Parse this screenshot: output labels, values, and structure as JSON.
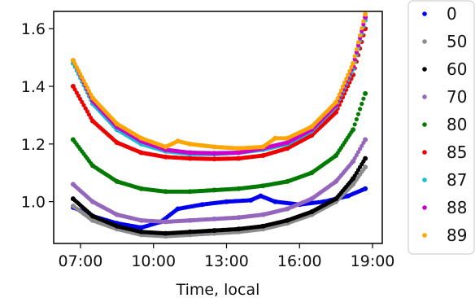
{
  "chart_data": {
    "type": "scatter",
    "title": "",
    "xlabel": "Time, local",
    "ylabel": "",
    "x_range_hours": [
      5.9,
      19.4
    ],
    "ylim": [
      0.855,
      1.66
    ],
    "x_ticks": [
      {
        "value": 7,
        "label": "07:00"
      },
      {
        "value": 10,
        "label": "10:00"
      },
      {
        "value": 13,
        "label": "13:00"
      },
      {
        "value": 16,
        "label": "16:00"
      },
      {
        "value": 19,
        "label": "19:00"
      }
    ],
    "y_ticks": [
      {
        "value": 1.0,
        "label": "1.0"
      },
      {
        "value": 1.2,
        "label": "1.2"
      },
      {
        "value": 1.4,
        "label": "1.4"
      },
      {
        "value": 1.6,
        "label": "1.6"
      }
    ],
    "grid": false,
    "legend_position": "outside-right",
    "series": [
      {
        "name": "0",
        "color": "#0000ee",
        "x": [
          6.7,
          7.5,
          8.5,
          9.5,
          10.3,
          11.0,
          12.0,
          13.0,
          14.0,
          14.4,
          15.0,
          16.0,
          17.0,
          18.0,
          18.7
        ],
        "y": [
          0.98,
          0.95,
          0.925,
          0.91,
          0.93,
          0.975,
          0.99,
          1.0,
          1.005,
          1.02,
          1.0,
          0.99,
          1.0,
          1.02,
          1.045
        ]
      },
      {
        "name": "50",
        "color": "#8c8c8c",
        "x": [
          6.7,
          7.5,
          8.5,
          9.5,
          10.5,
          11.5,
          12.5,
          13.5,
          14.5,
          15.5,
          16.5,
          17.5,
          18.2,
          18.7
        ],
        "y": [
          0.985,
          0.935,
          0.905,
          0.885,
          0.88,
          0.885,
          0.89,
          0.895,
          0.905,
          0.925,
          0.955,
          1.0,
          1.06,
          1.12
        ]
      },
      {
        "name": "60",
        "color": "#000000",
        "x": [
          6.7,
          7.5,
          8.5,
          9.5,
          10.5,
          11.5,
          12.5,
          13.5,
          14.5,
          15.5,
          16.5,
          17.5,
          18.2,
          18.7
        ],
        "y": [
          1.01,
          0.95,
          0.915,
          0.895,
          0.89,
          0.895,
          0.9,
          0.905,
          0.915,
          0.935,
          0.965,
          1.01,
          1.08,
          1.15
        ]
      },
      {
        "name": "70",
        "color": "#9467bd",
        "x": [
          6.7,
          7.5,
          8.5,
          9.5,
          10.5,
          11.5,
          12.5,
          13.5,
          14.5,
          15.5,
          16.5,
          17.5,
          18.2,
          18.7
        ],
        "y": [
          1.06,
          1.0,
          0.955,
          0.935,
          0.93,
          0.935,
          0.94,
          0.945,
          0.955,
          0.975,
          1.01,
          1.07,
          1.14,
          1.215
        ]
      },
      {
        "name": "80",
        "color": "#007a00",
        "x": [
          6.7,
          7.5,
          8.5,
          9.5,
          10.5,
          11.5,
          12.5,
          13.5,
          14.5,
          15.5,
          16.5,
          17.5,
          18.2,
          18.7
        ],
        "y": [
          1.215,
          1.125,
          1.07,
          1.045,
          1.035,
          1.035,
          1.04,
          1.045,
          1.055,
          1.07,
          1.1,
          1.16,
          1.25,
          1.375
        ]
      },
      {
        "name": "85",
        "color": "#ee0000",
        "x": [
          6.7,
          7.5,
          8.5,
          9.5,
          10.5,
          11.5,
          12.5,
          13.5,
          14.5,
          15.5,
          16.5,
          17.5,
          18.2,
          18.7
        ],
        "y": [
          1.4,
          1.28,
          1.205,
          1.17,
          1.155,
          1.15,
          1.148,
          1.15,
          1.16,
          1.185,
          1.23,
          1.31,
          1.44,
          1.6
        ]
      },
      {
        "name": "87",
        "color": "#17becf",
        "x": [
          6.7,
          7.5,
          8.5,
          9.5,
          10.5,
          11.5,
          12.5,
          13.5,
          14.5,
          15.5,
          16.5,
          17.5,
          18.2,
          18.7
        ],
        "y": [
          1.48,
          1.34,
          1.25,
          1.2,
          1.175,
          1.165,
          1.165,
          1.17,
          1.18,
          1.2,
          1.245,
          1.33,
          1.46,
          1.63
        ]
      },
      {
        "name": "88",
        "color": "#cc00cc",
        "x": [
          6.7,
          7.5,
          8.5,
          9.5,
          10.5,
          11.5,
          12.5,
          13.5,
          14.5,
          15.5,
          16.5,
          17.5,
          18.2,
          18.7
        ],
        "y": [
          1.49,
          1.35,
          1.26,
          1.21,
          1.18,
          1.17,
          1.168,
          1.17,
          1.185,
          1.205,
          1.25,
          1.335,
          1.47,
          1.64
        ]
      },
      {
        "name": "89",
        "color": "#ffa500",
        "x": [
          6.7,
          7.5,
          8.5,
          9.5,
          10.5,
          11.0,
          11.5,
          12.5,
          13.5,
          14.5,
          15.0,
          15.5,
          16.5,
          17.5,
          18.2,
          18.7
        ],
        "y": [
          1.49,
          1.36,
          1.27,
          1.22,
          1.19,
          1.21,
          1.2,
          1.19,
          1.185,
          1.19,
          1.22,
          1.22,
          1.26,
          1.345,
          1.48,
          1.65
        ]
      }
    ]
  }
}
